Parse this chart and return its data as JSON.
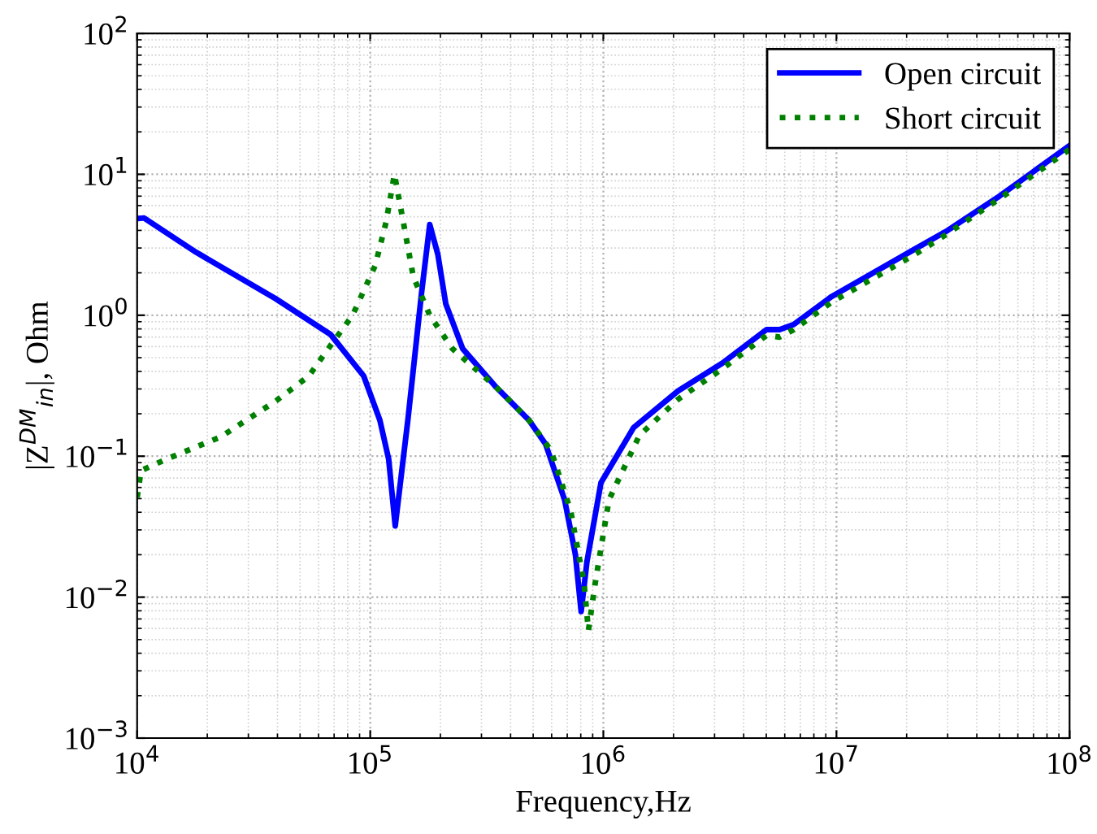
{
  "chart_data": {
    "type": "line",
    "xlabel": "Frequency,Hz",
    "ylabel": "|Z$^{DM}$$_{in}$|, Ohm",
    "log": "xy",
    "grid": true,
    "legend": "top right",
    "xlim": [
      10000,
      100000000
    ],
    "ylim": [
      0.001,
      100
    ],
    "xticks": [
      {
        "value": 10000,
        "label": "10$^{4}$"
      },
      {
        "value": 100000,
        "label": "10$^{5}$"
      },
      {
        "value": 1000000,
        "label": "10$^{6}$"
      },
      {
        "value": 10000000,
        "label": "10$^{7}$"
      },
      {
        "value": 100000000,
        "label": "10$^{8}$"
      }
    ],
    "yticks": [
      {
        "value": 0.001,
        "label": "10$^{−3}$"
      },
      {
        "value": 0.01,
        "label": "10$^{−2}$"
      },
      {
        "value": 0.1,
        "label": "10$^{−1}$"
      },
      {
        "value": 1,
        "label": "10$^{0}$"
      },
      {
        "value": 10,
        "label": "10$^{1}$"
      },
      {
        "value": 100,
        "label": "10$^{2}$"
      }
    ],
    "series": [
      {
        "name": "Open circuit",
        "color": "#0000ff",
        "line_style": "solid",
        "x": [
          10000,
          10700,
          17900,
          39300,
          67600,
          93800,
          110000,
          120000,
          128000,
          145000,
          166000,
          180000,
          195000,
          211000,
          249000,
          346000,
          480000,
          565000,
          682000,
          759000,
          803000,
          851000,
          977000,
          1350000,
          2090000,
          3240000,
          5010000,
          5700000,
          6550000,
          9550000,
          21700000,
          30000000,
          50000000,
          100000000
        ],
        "values": [
          4.85,
          4.9,
          2.8,
          1.31,
          0.73,
          0.37,
          0.18,
          0.095,
          0.032,
          0.18,
          1.44,
          4.4,
          2.7,
          1.2,
          0.58,
          0.31,
          0.18,
          0.122,
          0.049,
          0.02,
          0.0079,
          0.018,
          0.065,
          0.16,
          0.29,
          0.457,
          0.79,
          0.79,
          0.86,
          1.36,
          2.95,
          4.0,
          7.0,
          16
        ]
      },
      {
        "name": "Short circuit",
        "color": "#008000",
        "line_style": "dotted",
        "x": [
          10000,
          10400,
          13300,
          22800,
          39300,
          54500,
          67600,
          84000,
          105000,
          117000,
          127000,
          137000,
          153000,
          180000,
          225000,
          346000,
          480000,
          596000,
          724000,
          826000,
          863000,
          923000,
          1057000,
          1426000,
          2090000,
          3240000,
          5010000,
          5700000,
          6550000,
          9550000,
          21700000,
          30000000,
          50000000,
          100000000
        ],
        "values": [
          0.051,
          0.079,
          0.095,
          0.137,
          0.246,
          0.37,
          0.61,
          1.0,
          2.25,
          4.6,
          10,
          5.1,
          1.88,
          1.0,
          0.58,
          0.31,
          0.18,
          0.11,
          0.041,
          0.0126,
          0.0058,
          0.0126,
          0.049,
          0.14,
          0.253,
          0.417,
          0.72,
          0.7,
          0.79,
          1.24,
          2.7,
          3.8,
          6.7,
          15
        ]
      }
    ]
  }
}
